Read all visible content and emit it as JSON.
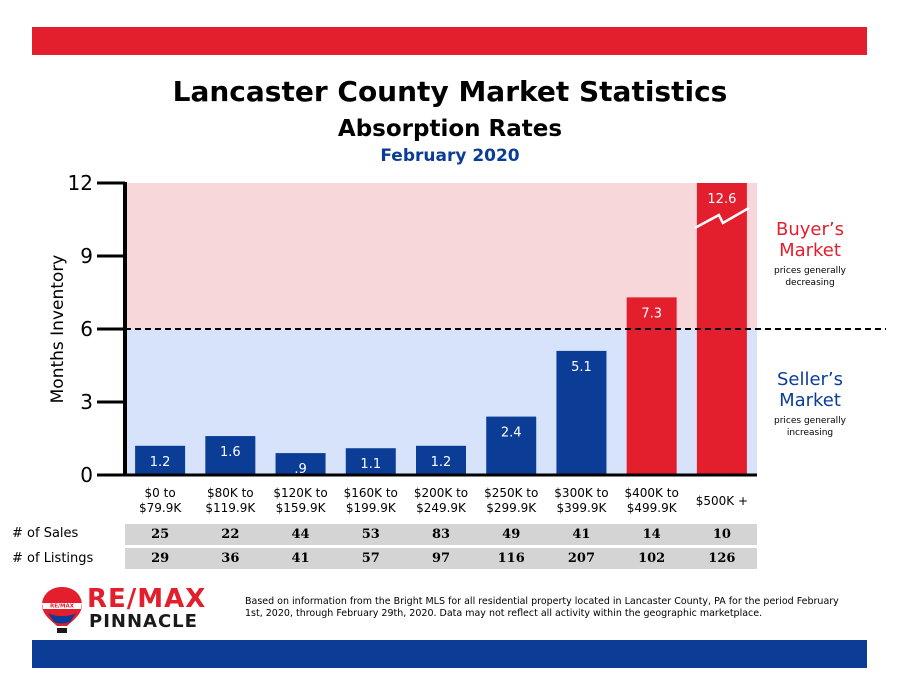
{
  "header": {
    "title": "Lancaster County Market Statistics",
    "subtitle": "Absorption Rates",
    "date": "February 2020"
  },
  "colors": {
    "brand_red": "#e31e2d",
    "brand_blue": "#0b3d96",
    "buyer_zone": "#f8d7da",
    "seller_zone": "#d6e3fb"
  },
  "chart_data": {
    "type": "bar",
    "ylabel": "Months Inventory",
    "ylim": [
      0,
      12
    ],
    "yticks": [
      "0",
      "3",
      "6",
      "9",
      "12"
    ],
    "threshold": 6,
    "categories": [
      "$0 to $79.9K",
      "$80K to $119.9K",
      "$120K to $159.9K",
      "$160K to $199.9K",
      "$200K to $249.9K",
      "$250K to $299.9K",
      "$300K to $399.9K",
      "$400K to $499.9K",
      "$500K +"
    ],
    "values": [
      1.2,
      1.6,
      0.9,
      1.1,
      1.2,
      2.4,
      5.1,
      7.3,
      12.6
    ],
    "value_labels": [
      "1.2",
      "1.6",
      ".9",
      "1.1",
      "1.2",
      "2.4",
      "5.1",
      "7.3",
      "12.6"
    ],
    "axis_break_on_last_bar": true
  },
  "zones": {
    "buyer": {
      "title_line1": "Buyer’s",
      "title_line2": "Market",
      "note_line1": "prices generally",
      "note_line2": "decreasing"
    },
    "seller": {
      "title_line1": "Seller’s",
      "title_line2": "Market",
      "note_line1": "prices generally",
      "note_line2": "increasing"
    }
  },
  "table": {
    "sales_label": "# of Sales",
    "listings_label": "# of Listings",
    "sales": [
      "25",
      "22",
      "44",
      "53",
      "83",
      "49",
      "41",
      "14",
      "10"
    ],
    "listings": [
      "29",
      "36",
      "41",
      "57",
      "97",
      "116",
      "207",
      "102",
      "126"
    ]
  },
  "logo": {
    "brand": "RE/MAX",
    "sub": "PINNACLE",
    "balloon_text": "RE/MAX",
    "balloon_icon": "hot-air-balloon-icon"
  },
  "footnote": "Based on information from the Bright MLS for all residential property located in Lancaster County, PA for the period February 1st, 2020, through February 29th, 2020.  Data may not reflect all activity within the geographic marketplace."
}
